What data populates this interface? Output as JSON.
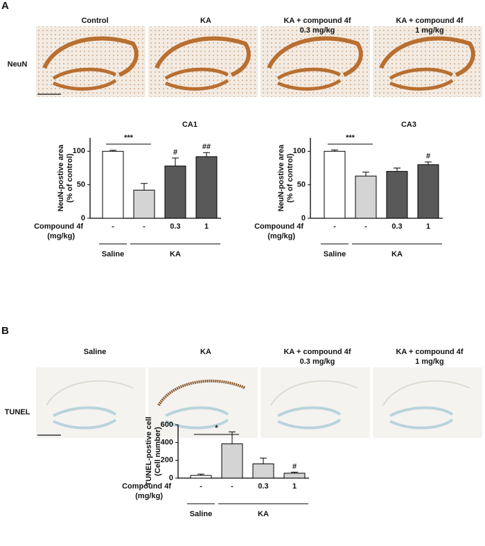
{
  "panel_a": {
    "label": "A",
    "row_label": "NeuN",
    "columns": [
      [
        "Control"
      ],
      [
        "KA"
      ],
      [
        "KA + compound 4f",
        "0.3 mg/kg"
      ],
      [
        "KA + compound 4f",
        "1 mg/kg"
      ]
    ]
  },
  "panel_b": {
    "label": "B",
    "row_label": "TUNEL",
    "columns": [
      [
        "Saline"
      ],
      [
        "KA"
      ],
      [
        "KA + compound 4f",
        "0.3 mg/kg"
      ],
      [
        "KA + compound 4f",
        "1 mg/kg"
      ]
    ]
  },
  "chart_data": [
    {
      "type": "bar",
      "title": "CA1",
      "y_label": [
        "NeuN-postive area",
        "(% of control)"
      ],
      "row_label": [
        "Compound 4f",
        "(mg/kg)"
      ],
      "categories": [
        "-",
        "-",
        "0.3",
        "1"
      ],
      "groups": [
        "Saline",
        "KA"
      ],
      "values": [
        100,
        42,
        78,
        92
      ],
      "errors": [
        1.5,
        10,
        12,
        6
      ],
      "colors": [
        "#ffffff",
        "#d4d4d4",
        "#595959",
        "#595959"
      ],
      "significance": [
        null,
        null,
        "#",
        "##"
      ],
      "comparison_label": "***",
      "ylim": [
        0,
        120
      ],
      "yticks": [
        0,
        50,
        100
      ]
    },
    {
      "type": "bar",
      "title": "CA3",
      "y_label": [
        "NeuN-postive area",
        "(% of control)"
      ],
      "row_label": [
        "Compound 4f",
        "(mg/kg)"
      ],
      "categories": [
        "-",
        "-",
        "0.3",
        "1"
      ],
      "groups": [
        "Saline",
        "KA"
      ],
      "values": [
        100,
        63,
        70,
        80
      ],
      "errors": [
        2,
        6,
        5,
        4
      ],
      "colors": [
        "#ffffff",
        "#d4d4d4",
        "#595959",
        "#595959"
      ],
      "significance": [
        null,
        null,
        null,
        "#"
      ],
      "comparison_label": "***",
      "ylim": [
        0,
        120
      ],
      "yticks": [
        0,
        50,
        100
      ]
    },
    {
      "type": "bar",
      "y_label": [
        "TUNEL-postive cell",
        "(Cell number)"
      ],
      "row_label": [
        "Compound 4f",
        "(mg/kg)"
      ],
      "categories": [
        "-",
        "-",
        "0.3",
        "1"
      ],
      "groups": [
        "Saline",
        "KA"
      ],
      "values": [
        30,
        385,
        160,
        55
      ],
      "errors": [
        15,
        135,
        65,
        12
      ],
      "colors": [
        "#ffffff",
        "#d4d4d4",
        "#d4d4d4",
        "#d4d4d4"
      ],
      "significance": [
        null,
        null,
        null,
        "#"
      ],
      "comparison_label": "*",
      "ylim": [
        0,
        600
      ],
      "yticks": [
        0,
        200,
        400,
        600
      ]
    }
  ]
}
